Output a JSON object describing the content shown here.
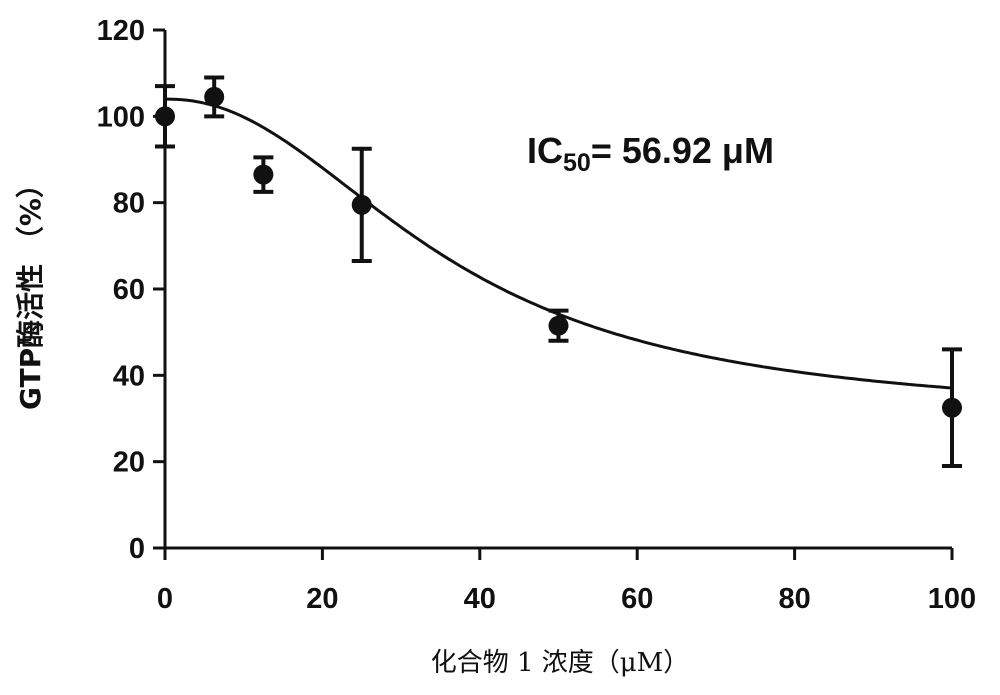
{
  "chart_data": {
    "type": "scatter",
    "title": "",
    "xlabel": "化合物 1 浓度（μM）",
    "ylabel": "GTP酶活性 （%）",
    "xlim": [
      0,
      100
    ],
    "ylim": [
      0,
      120
    ],
    "xticks": [
      "0",
      "20",
      "40",
      "60",
      "80",
      "100"
    ],
    "yticks": [
      "0",
      "20",
      "40",
      "60",
      "80",
      "100",
      "120"
    ],
    "grid": false,
    "legend": "none",
    "annotation": {
      "prefix": "IC",
      "subscript": "50",
      "suffix": "= 56.92 μM"
    },
    "points": [
      {
        "x": 0,
        "y": 100,
        "err": 7
      },
      {
        "x": 6.25,
        "y": 104.5,
        "err": 4.5
      },
      {
        "x": 12.5,
        "y": 86.5,
        "err": 4
      },
      {
        "x": 25,
        "y": 79.5,
        "err": 13
      },
      {
        "x": 50,
        "y": 51.5,
        "err": 3.5
      },
      {
        "x": 100,
        "y": 32.5,
        "err": 13.5
      }
    ],
    "fit_curve": {
      "model": "four-parameter logistic",
      "top": 104,
      "bottom": 30,
      "ic50": 36,
      "hill": 2.2
    },
    "colors": {
      "marks": "#111111",
      "axes": "#111111"
    }
  }
}
